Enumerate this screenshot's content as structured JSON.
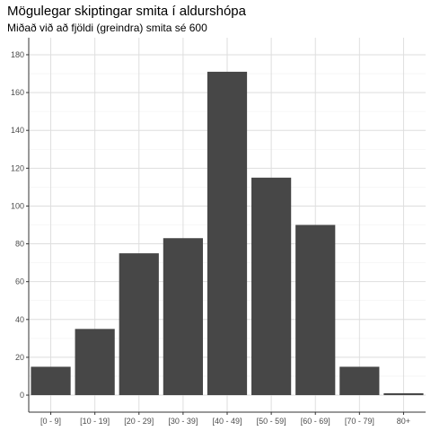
{
  "chart_data": {
    "type": "bar",
    "title": "Mögulegar skiptingar smita í aldurshópa",
    "subtitle": "Miðað við að fjöldi (greindra) smita sé 600",
    "xlabel": "",
    "ylabel": "",
    "categories": [
      "[0 - 9]",
      "[10 - 19]",
      "[20 - 29]",
      "[30 - 39]",
      "[40 - 49]",
      "[50 - 59]",
      "[60 - 69]",
      "[70 - 79]",
      "80+"
    ],
    "values": [
      15,
      35,
      75,
      83,
      171,
      115,
      90,
      15,
      1
    ],
    "ylim": [
      -9,
      189
    ],
    "yticks": [
      "0",
      "20",
      "40",
      "60",
      "80",
      "100",
      "120",
      "140",
      "160",
      "180"
    ],
    "grid": true,
    "legend": "none",
    "colors": {
      "bar": "#474747",
      "grid_major": "#dedede",
      "grid_minor": "#efefef",
      "axis": "#333333"
    }
  }
}
